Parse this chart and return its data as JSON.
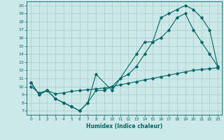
{
  "xlabel": "Humidex (Indice chaleur)",
  "xlim": [
    -0.5,
    23.5
  ],
  "ylim": [
    6.5,
    20.5
  ],
  "xticks": [
    0,
    1,
    2,
    3,
    4,
    5,
    6,
    7,
    8,
    9,
    10,
    11,
    12,
    13,
    14,
    15,
    16,
    17,
    18,
    19,
    20,
    21,
    22,
    23
  ],
  "yticks": [
    7,
    8,
    9,
    10,
    11,
    12,
    13,
    14,
    15,
    16,
    17,
    18,
    19,
    20
  ],
  "bg_color": "#cce8e8",
  "grid_color": "#aacccc",
  "line_color": "#006666",
  "line1_x": [
    0,
    1,
    2,
    3,
    4,
    5,
    6,
    7,
    8,
    10,
    13,
    14,
    15,
    16,
    17,
    18,
    19,
    20,
    21,
    22,
    23
  ],
  "line1_y": [
    10.5,
    9.0,
    9.5,
    8.5,
    8.0,
    7.5,
    7.0,
    8.0,
    11.5,
    9.5,
    14.0,
    15.5,
    15.5,
    18.5,
    19.0,
    19.5,
    20.0,
    19.5,
    18.5,
    17.0,
    12.5
  ],
  "line2_x": [
    0,
    1,
    2,
    3,
    4,
    5,
    6,
    7,
    8,
    9,
    10,
    11,
    12,
    13,
    14,
    15,
    16,
    17,
    18,
    19,
    20,
    21,
    22,
    23
  ],
  "line2_y": [
    10.5,
    9.0,
    9.5,
    8.5,
    8.0,
    7.5,
    7.0,
    8.0,
    9.5,
    9.5,
    10.0,
    11.0,
    11.5,
    12.5,
    14.0,
    15.5,
    16.0,
    17.0,
    18.5,
    19.0,
    17.0,
    15.5,
    14.0,
    12.5
  ],
  "line3_x": [
    0,
    1,
    2,
    3,
    4,
    5,
    6,
    7,
    8,
    9,
    10,
    11,
    12,
    13,
    14,
    15,
    16,
    17,
    18,
    19,
    20,
    21,
    22,
    23
  ],
  "line3_y": [
    10.0,
    9.2,
    9.5,
    9.1,
    9.2,
    9.4,
    9.5,
    9.6,
    9.7,
    9.8,
    10.0,
    10.2,
    10.4,
    10.6,
    10.8,
    11.0,
    11.2,
    11.4,
    11.6,
    11.8,
    12.0,
    12.1,
    12.2,
    12.3
  ]
}
